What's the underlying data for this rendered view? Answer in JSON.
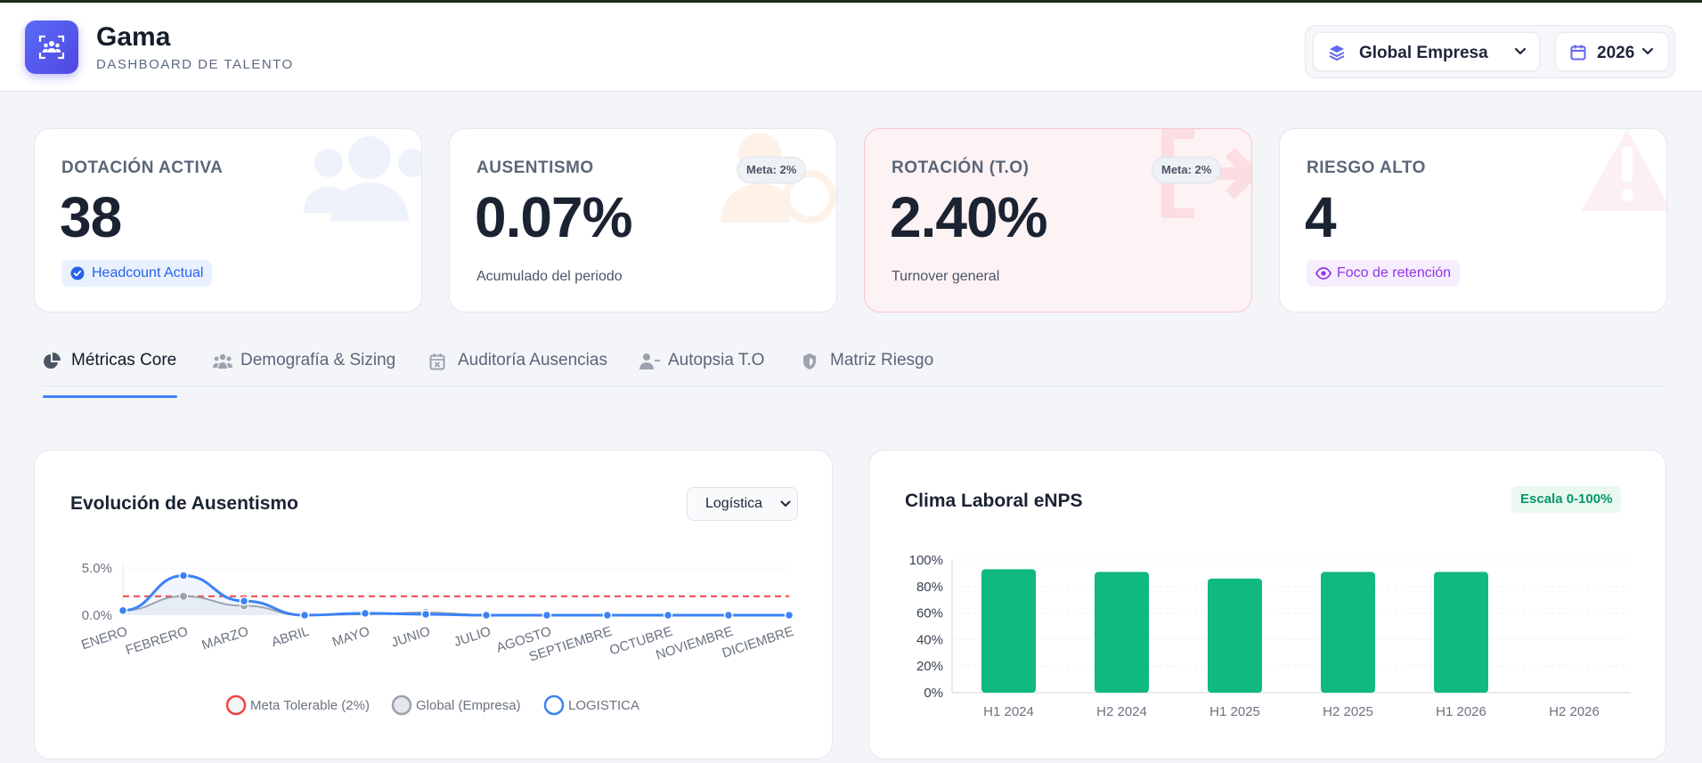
{
  "header": {
    "brand": "Gama",
    "subtitle": "DASHBOARD DE TALENTO",
    "scope_select": "Global Empresa",
    "year_select": "2026"
  },
  "kpis": [
    {
      "label": "DOTACIÓN ACTIVA",
      "value": "38",
      "badge": "Headcount Actual"
    },
    {
      "label": "AUSENTISMO",
      "value": "0.07%",
      "meta": "Meta: 2%",
      "sub": "Acumulado del periodo"
    },
    {
      "label": "ROTACIÓN (T.O)",
      "value": "2.40%",
      "meta": "Meta: 2%",
      "sub": "Turnover general"
    },
    {
      "label": "RIESGO ALTO",
      "value": "4",
      "badge": "Foco de retención"
    }
  ],
  "tabs": [
    {
      "label": "Métricas Core",
      "icon": "pie-chart-icon",
      "active": true
    },
    {
      "label": "Demografía & Sizing",
      "icon": "users-icon",
      "active": false
    },
    {
      "label": "Auditoría Ausencias",
      "icon": "calendar-x-icon",
      "active": false
    },
    {
      "label": "Autopsia T.O",
      "icon": "user-minus-icon",
      "active": false
    },
    {
      "label": "Matriz Riesgo",
      "icon": "shield-icon",
      "active": false
    }
  ],
  "absenteeism_card": {
    "title": "Evolución de Ausentismo",
    "area_select": "Logística"
  },
  "enps_card": {
    "title": "Clima Laboral eNPS",
    "scale_badge": "Escala 0-100%"
  },
  "colors": {
    "accent": "#3b82f6",
    "green": "#10b981",
    "red_dashed": "#ef4444",
    "gray_series": "#9ca3af"
  },
  "chart_data": [
    {
      "type": "line",
      "title": "Evolución de Ausentismo",
      "categories": [
        "ENERO",
        "FEBRERO",
        "MARZO",
        "ABRIL",
        "MAYO",
        "JUNIO",
        "JULIO",
        "AGOSTO",
        "SEPTIEMBRE",
        "OCTUBRE",
        "NOVIEMBRE",
        "DICIEMBRE"
      ],
      "series": [
        {
          "name": "Meta Tolerable (2%)",
          "values": [
            2,
            2,
            2,
            2,
            2,
            2,
            2,
            2,
            2,
            2,
            2,
            2
          ]
        },
        {
          "name": "Global (Empresa)",
          "values": [
            0.5,
            2.0,
            1.0,
            0.0,
            0.1,
            0.3,
            0.0,
            0.0,
            0.0,
            0.0,
            0.0,
            0.0
          ]
        },
        {
          "name": "LOGISTICA",
          "values": [
            0.5,
            4.2,
            1.5,
            0.0,
            0.2,
            0.1,
            0.0,
            0.0,
            0.0,
            0.0,
            0.0,
            0.0
          ]
        }
      ],
      "yticks": [
        "5.0%",
        "0.0%"
      ],
      "ylim": [
        0,
        5
      ],
      "legend": "bottom"
    },
    {
      "type": "bar",
      "title": "Clima Laboral eNPS",
      "categories": [
        "H1 2024",
        "H2 2024",
        "H1 2025",
        "H2 2025",
        "H1 2026",
        "H2 2026"
      ],
      "values": [
        93,
        91,
        86,
        91,
        91,
        0
      ],
      "yticks": [
        "100%",
        "80%",
        "60%",
        "40%",
        "20%",
        "0%"
      ],
      "ylim": [
        0,
        100
      ]
    }
  ]
}
